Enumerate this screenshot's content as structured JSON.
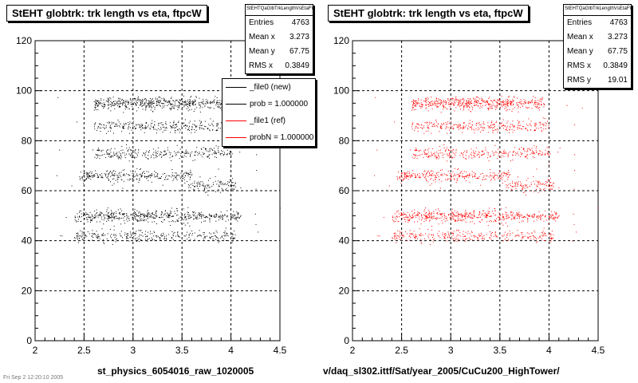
{
  "footer_text": "Fri Sep 2 12:20:10 2005",
  "chart_data": [
    {
      "type": "scatter",
      "title": "StEHT globtrk: trk length vs eta, ftpcW",
      "xlabel": "st_physics_6054016_raw_1020005",
      "ylabel": "",
      "xlim": [
        2,
        4.5
      ],
      "ylim": [
        0,
        120
      ],
      "xticks": [
        "2",
        "2.5",
        "3",
        "3.5",
        "4",
        "4.5"
      ],
      "yticks": [
        "0",
        "20",
        "40",
        "60",
        "80",
        "100",
        "120"
      ],
      "grid": true,
      "point_color": "#000000",
      "stats": {
        "name": "StEHTQaGlbTrkLengthVsEtaFW",
        "rows": [
          {
            "label": "Entries",
            "value": "4763"
          },
          {
            "label": "Mean x",
            "value": "3.273"
          },
          {
            "label": "Mean y",
            "value": "67.75"
          },
          {
            "label": "RMS x",
            "value": "0.3849"
          }
        ]
      },
      "legend": {
        "placement": "top-right",
        "entries": [
          {
            "text": "_file0 (new)",
            "color": "#000000"
          },
          {
            "text": "prob = 1.000000",
            "color": "#000000"
          },
          {
            "text": "_file1 (ref)",
            "color": "#ff0000"
          },
          {
            "text": "probN = 1.000000",
            "color": "#ff0000"
          }
        ]
      },
      "bands": [
        {
          "y": 95,
          "x": [
            2.6,
            3.95
          ],
          "density": "high"
        },
        {
          "y": 86,
          "x": [
            2.6,
            4.0
          ],
          "density": "medium"
        },
        {
          "y": 75,
          "x": [
            2.6,
            4.0
          ],
          "density": "medium"
        },
        {
          "y": 66,
          "x": [
            2.45,
            3.6
          ],
          "density": "medium"
        },
        {
          "y": 62,
          "x": [
            3.55,
            4.05
          ],
          "density": "low"
        },
        {
          "y": 50,
          "x": [
            2.4,
            4.1
          ],
          "density": "high"
        },
        {
          "y": 42,
          "x": [
            2.4,
            4.05
          ],
          "density": "medium"
        }
      ]
    },
    {
      "type": "scatter",
      "title": "StEHT globtrk: trk length vs eta, ftpcW",
      "xlabel": "v/daq_sl302.ittf/Sat/year_2005/CuCu200_HighTower/",
      "ylabel": "",
      "xlim": [
        2,
        4.5
      ],
      "ylim": [
        0,
        120
      ],
      "xticks": [
        "2",
        "2.5",
        "3",
        "3.5",
        "4",
        "4.5"
      ],
      "yticks": [
        "0",
        "20",
        "40",
        "60",
        "80",
        "100",
        "120"
      ],
      "grid": true,
      "point_color": "#ff0000",
      "stats": {
        "name": "StEHTQaGlbTrkLengthVsEtaFW",
        "rows": [
          {
            "label": "Entries",
            "value": "4763"
          },
          {
            "label": "Mean x",
            "value": "3.273"
          },
          {
            "label": "Mean y",
            "value": "67.75"
          },
          {
            "label": "RMS x",
            "value": "0.3849"
          },
          {
            "label": "RMS y",
            "value": "19.01"
          }
        ]
      },
      "bands": [
        {
          "y": 95,
          "x": [
            2.6,
            3.95
          ],
          "density": "high"
        },
        {
          "y": 86,
          "x": [
            2.6,
            4.0
          ],
          "density": "medium"
        },
        {
          "y": 75,
          "x": [
            2.6,
            4.0
          ],
          "density": "medium"
        },
        {
          "y": 66,
          "x": [
            2.45,
            3.6
          ],
          "density": "medium"
        },
        {
          "y": 62,
          "x": [
            3.55,
            4.05
          ],
          "density": "low"
        },
        {
          "y": 50,
          "x": [
            2.4,
            4.1
          ],
          "density": "high"
        },
        {
          "y": 42,
          "x": [
            2.4,
            4.05
          ],
          "density": "medium"
        }
      ]
    }
  ]
}
